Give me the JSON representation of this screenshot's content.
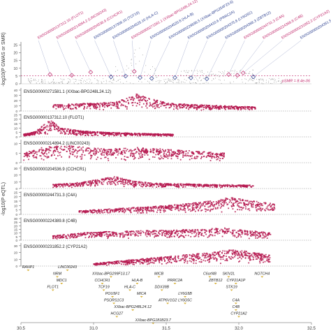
{
  "chart_data": {
    "type": "scatter",
    "xaxis": {
      "ticks": [
        "30.5",
        "31.0",
        "31.5",
        "32.0",
        "32.5"
      ],
      "tick_values": [
        30.5,
        31.0,
        31.5,
        32.0,
        32.5
      ],
      "range": [
        30.5,
        32.5
      ]
    },
    "top_panel": {
      "ylabel": "-log10(P GWAS or SMR)",
      "yticks": [
        "0",
        "5",
        "10",
        "15",
        "20",
        "25"
      ],
      "ylim": [
        0,
        27
      ],
      "threshold_label": "pSMR = 8.4e-06",
      "threshold": 5.1,
      "probes": [
        {
          "id": "ENSG00000137312.10",
          "gene": "FLOT1",
          "color": "#c0286b",
          "x": 30.7,
          "y": 6.0
        },
        {
          "id": "ENSG00000214894.2",
          "gene": "LINC00243",
          "color": "#c0286b",
          "x": 30.85,
          "y": 5.5
        },
        {
          "id": "ENSG00000204536.9",
          "gene": "CCHCR1",
          "color": "#c0286b",
          "x": 30.98,
          "y": 7.5
        },
        {
          "id": "ENSG00000137309.10",
          "gene": "TCF19",
          "color": "#2b3f8f",
          "x": 31.12,
          "y": 4.5
        },
        {
          "id": "ENSG00000204525.10",
          "gene": "HLA-C",
          "color": "#2b3f8f",
          "x": 31.22,
          "y": 5.0
        },
        {
          "id": "ENSG00000271581.1",
          "gene": "XXbac-BPG248L24.12",
          "color": "#c0286b",
          "x": 31.28,
          "y": 8.0
        },
        {
          "id": "ENSG00000204520.8",
          "gene": "HLA-B",
          "color": "#2b3f8f",
          "x": 31.32,
          "y": 4.0
        },
        {
          "id": "ENSG00000229836.5",
          "gene": "XXbac-BPG254F23.6",
          "color": "#2b3f8f",
          "x": 31.4,
          "y": 3.5
        },
        {
          "id": "ENSG00000204410.6",
          "gene": "PRRC2A",
          "color": "#2b3f8f",
          "x": 31.56,
          "y": 4.0
        },
        {
          "id": "ENSG00000204375.8",
          "gene": "LY6G5C",
          "color": "#2b3f8f",
          "x": 31.67,
          "y": 3.8
        },
        {
          "id": "ENSG00000204366.3",
          "gene": "ZBTB12",
          "color": "#2b3f8f",
          "x": 31.78,
          "y": 3.2
        },
        {
          "id": "ENSG00000244731.3",
          "gene": "C4A",
          "color": "#c0286b",
          "x": 31.93,
          "y": 6.0
        },
        {
          "id": "ENSG00000224389.8",
          "gene": "C4B",
          "color": "#c0286b",
          "x": 31.99,
          "y": 5.5
        },
        {
          "id": "ENSG00000231852.2",
          "gene": "CYP21A2",
          "color": "#c0286b",
          "x": 32.03,
          "y": 7.0
        },
        {
          "id": "ENSG00000204351.5",
          "gene": "CYP21A1P",
          "color": "#2b3f8f",
          "x": 32.1,
          "y": 4.5
        }
      ]
    },
    "eqtl_ylabel": "-log10(P eQTL)",
    "eqtl_panels": [
      {
        "label": "ENSG00000271581.1 (XXbac-BPG248L24.12)",
        "yticks": [
          "0",
          "10",
          "20",
          "30",
          "40"
        ],
        "ymax": 44,
        "xstart": 30.72,
        "xend": 32.12,
        "profile": [
          [
            30.72,
            12
          ],
          [
            30.9,
            14
          ],
          [
            31.0,
            15
          ],
          [
            31.15,
            17
          ],
          [
            31.24,
            26
          ],
          [
            31.3,
            34
          ],
          [
            31.36,
            26
          ],
          [
            31.5,
            16
          ],
          [
            31.7,
            12
          ],
          [
            31.9,
            10
          ],
          [
            32.1,
            8
          ]
        ]
      },
      {
        "label": "ENSG00000137312.10 (FLOT1)",
        "yticks": [
          "0",
          "5",
          "10",
          "15",
          "20",
          "25"
        ],
        "ymax": 26,
        "xstart": 30.52,
        "xend": 31.55,
        "profile": [
          [
            30.52,
            3
          ],
          [
            30.6,
            6
          ],
          [
            30.7,
            19
          ],
          [
            30.78,
            10
          ],
          [
            30.9,
            7
          ],
          [
            31.1,
            5
          ],
          [
            31.3,
            4
          ],
          [
            31.55,
            3
          ]
        ]
      },
      {
        "label": "ENSG00000214894.2 (LINC00243)",
        "yticks": [
          "0",
          "5",
          "10"
        ],
        "ymax": 12,
        "xstart": 30.52,
        "xend": 31.9,
        "profile": [
          [
            30.52,
            5
          ],
          [
            30.65,
            8
          ],
          [
            30.8,
            9
          ],
          [
            30.95,
            8
          ],
          [
            31.1,
            7
          ],
          [
            31.3,
            8
          ],
          [
            31.5,
            7
          ],
          [
            31.7,
            6
          ],
          [
            31.9,
            5
          ]
        ]
      },
      {
        "label": "ENSG00000204536.9 (CCHCR1)",
        "yticks": [
          "0",
          "10",
          "20",
          "30"
        ],
        "ymax": 34,
        "xstart": 30.72,
        "xend": 32.1,
        "profile": [
          [
            30.72,
            6
          ],
          [
            30.9,
            9
          ],
          [
            31.05,
            14
          ],
          [
            31.15,
            18
          ],
          [
            31.25,
            12
          ],
          [
            31.4,
            8
          ],
          [
            31.6,
            7
          ],
          [
            31.8,
            6
          ],
          [
            32.1,
            5
          ]
        ]
      },
      {
        "label": "ENSG00000244731.3 (C4A)",
        "yticks": [
          "0",
          "5",
          "10",
          "15",
          "20",
          "25"
        ],
        "ymax": 26,
        "xstart": 30.9,
        "xend": 32.25,
        "profile": [
          [
            30.9,
            4
          ],
          [
            31.1,
            6
          ],
          [
            31.3,
            8
          ],
          [
            31.5,
            10
          ],
          [
            31.7,
            13
          ],
          [
            31.85,
            16
          ],
          [
            31.95,
            20
          ],
          [
            32.05,
            16
          ],
          [
            32.25,
            12
          ]
        ]
      },
      {
        "label": "ENSG00000224389.8 (C4B)",
        "yticks": [
          "0",
          "5",
          "10",
          "15",
          "20",
          "25",
          "30"
        ],
        "ymax": 32,
        "xstart": 30.72,
        "xend": 32.22,
        "profile": [
          [
            30.72,
            6
          ],
          [
            30.9,
            10
          ],
          [
            31.1,
            12
          ],
          [
            31.3,
            13
          ],
          [
            31.5,
            14
          ],
          [
            31.7,
            15
          ],
          [
            31.9,
            17
          ],
          [
            32.05,
            14
          ],
          [
            32.22,
            10
          ]
        ]
      },
      {
        "label": "ENSG00000231852.2 (CYP21A2)",
        "yticks": [
          "0",
          "10",
          "20",
          "30"
        ],
        "ymax": 34,
        "xstart": 31.0,
        "xend": 32.22,
        "profile": [
          [
            31.0,
            4
          ],
          [
            31.2,
            8
          ],
          [
            31.4,
            12
          ],
          [
            31.6,
            16
          ],
          [
            31.8,
            20
          ],
          [
            31.95,
            24
          ],
          [
            32.05,
            22
          ],
          [
            32.22,
            16
          ]
        ]
      }
    ],
    "genes": [
      {
        "name": "RANP1",
        "x": 30.55,
        "row": 0
      },
      {
        "name": "LINC00243",
        "x": 30.82,
        "row": 0
      },
      {
        "name": "NRM",
        "x": 30.75,
        "row": 1
      },
      {
        "name": "MDC1",
        "x": 30.78,
        "row": 2
      },
      {
        "name": "FLOT1",
        "x": 30.72,
        "row": 3
      },
      {
        "name": "XXbac-BPG299F13.17",
        "x": 31.12,
        "row": 1
      },
      {
        "name": "CCHCR1",
        "x": 31.06,
        "row": 2
      },
      {
        "name": "HLA-B",
        "x": 31.3,
        "row": 2
      },
      {
        "name": "TCF19",
        "x": 31.07,
        "row": 3
      },
      {
        "name": "HLA-C",
        "x": 31.25,
        "row": 3
      },
      {
        "name": "MICB",
        "x": 31.45,
        "row": 1
      },
      {
        "name": "PRRC2A",
        "x": 31.56,
        "row": 2
      },
      {
        "name": "DDX39B",
        "x": 31.47,
        "row": 3
      },
      {
        "name": "MICA",
        "x": 31.33,
        "row": 4
      },
      {
        "name": "POU5F1",
        "x": 31.13,
        "row": 4
      },
      {
        "name": "PSORS1C3",
        "x": 31.14,
        "row": 5
      },
      {
        "name": "LY6G5B",
        "x": 31.63,
        "row": 4
      },
      {
        "name": "LY6G5C",
        "x": 31.63,
        "row": 5
      },
      {
        "name": "ATP6V1G2",
        "x": 31.51,
        "row": 5
      },
      {
        "name": "C6orf48",
        "x": 31.8,
        "row": 1
      },
      {
        "name": "ZBTB12",
        "x": 31.84,
        "row": 2
      },
      {
        "name": "SKIV2L",
        "x": 31.93,
        "row": 1
      },
      {
        "name": "CYP21A1P",
        "x": 31.98,
        "row": 2
      },
      {
        "name": "STK19",
        "x": 31.95,
        "row": 3
      },
      {
        "name": "NOTCH4",
        "x": 32.16,
        "row": 1
      },
      {
        "name": "XXbac-BPG248L24.12",
        "x": 31.27,
        "row": 6
      },
      {
        "name": "HCG27",
        "x": 31.16,
        "row": 7
      },
      {
        "name": "XXbac-BPG181B23.7",
        "x": 31.41,
        "row": 8
      },
      {
        "name": "C4A",
        "x": 31.98,
        "row": 5
      },
      {
        "name": "C4B",
        "x": 31.98,
        "row": 6
      },
      {
        "name": "CYP21A2",
        "x": 32.0,
        "row": 7
      }
    ]
  }
}
